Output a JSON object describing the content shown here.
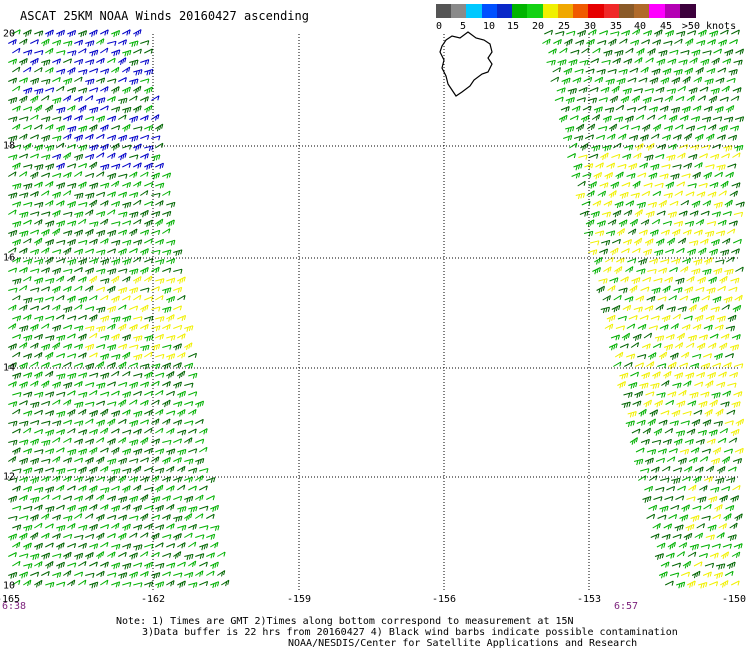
{
  "title": "ASCAT 25KM NOAA Winds 20160427 ascending",
  "legend": {
    "labels": [
      "0",
      "5",
      "10",
      "15",
      "20",
      "25",
      "30",
      "35",
      "40",
      "45",
      ">50 knots"
    ],
    "colors": [
      "#555555",
      "#8a8a8a",
      "#00c8ff",
      "#0050ff",
      "#0a28c8",
      "#00b400",
      "#14d214",
      "#f0f000",
      "#f0a800",
      "#f05a00",
      "#e60000",
      "#f02828",
      "#8a5a28",
      "#b06a2a",
      "#ff00ff",
      "#b400b4",
      "#3c003c"
    ]
  },
  "map": {
    "lon_ticks": [
      "-165",
      "-162",
      "-159",
      "-156",
      "-153",
      "-150"
    ],
    "lat_ticks": [
      "20",
      "18",
      "16",
      "14",
      "12",
      "10"
    ],
    "grid": true,
    "land": "Hawaii (Big Island)",
    "wind_colors": {
      "light": "#0000c8",
      "green": "#00b000",
      "darkgreen": "#006400",
      "yellow": "#f0f000"
    }
  },
  "times": {
    "left": "6:38",
    "right": "6:57"
  },
  "notes": {
    "line1": "Note: 1) Times are GMT 2)Times along bottom correspond to measurement at 15N",
    "line2": "3)Data buffer is 22 hrs from 20160427 4) Black wind barbs indicate possible contamination"
  },
  "credit": "NOAA/NESDIS/Center for Satellite Applications and Research"
}
